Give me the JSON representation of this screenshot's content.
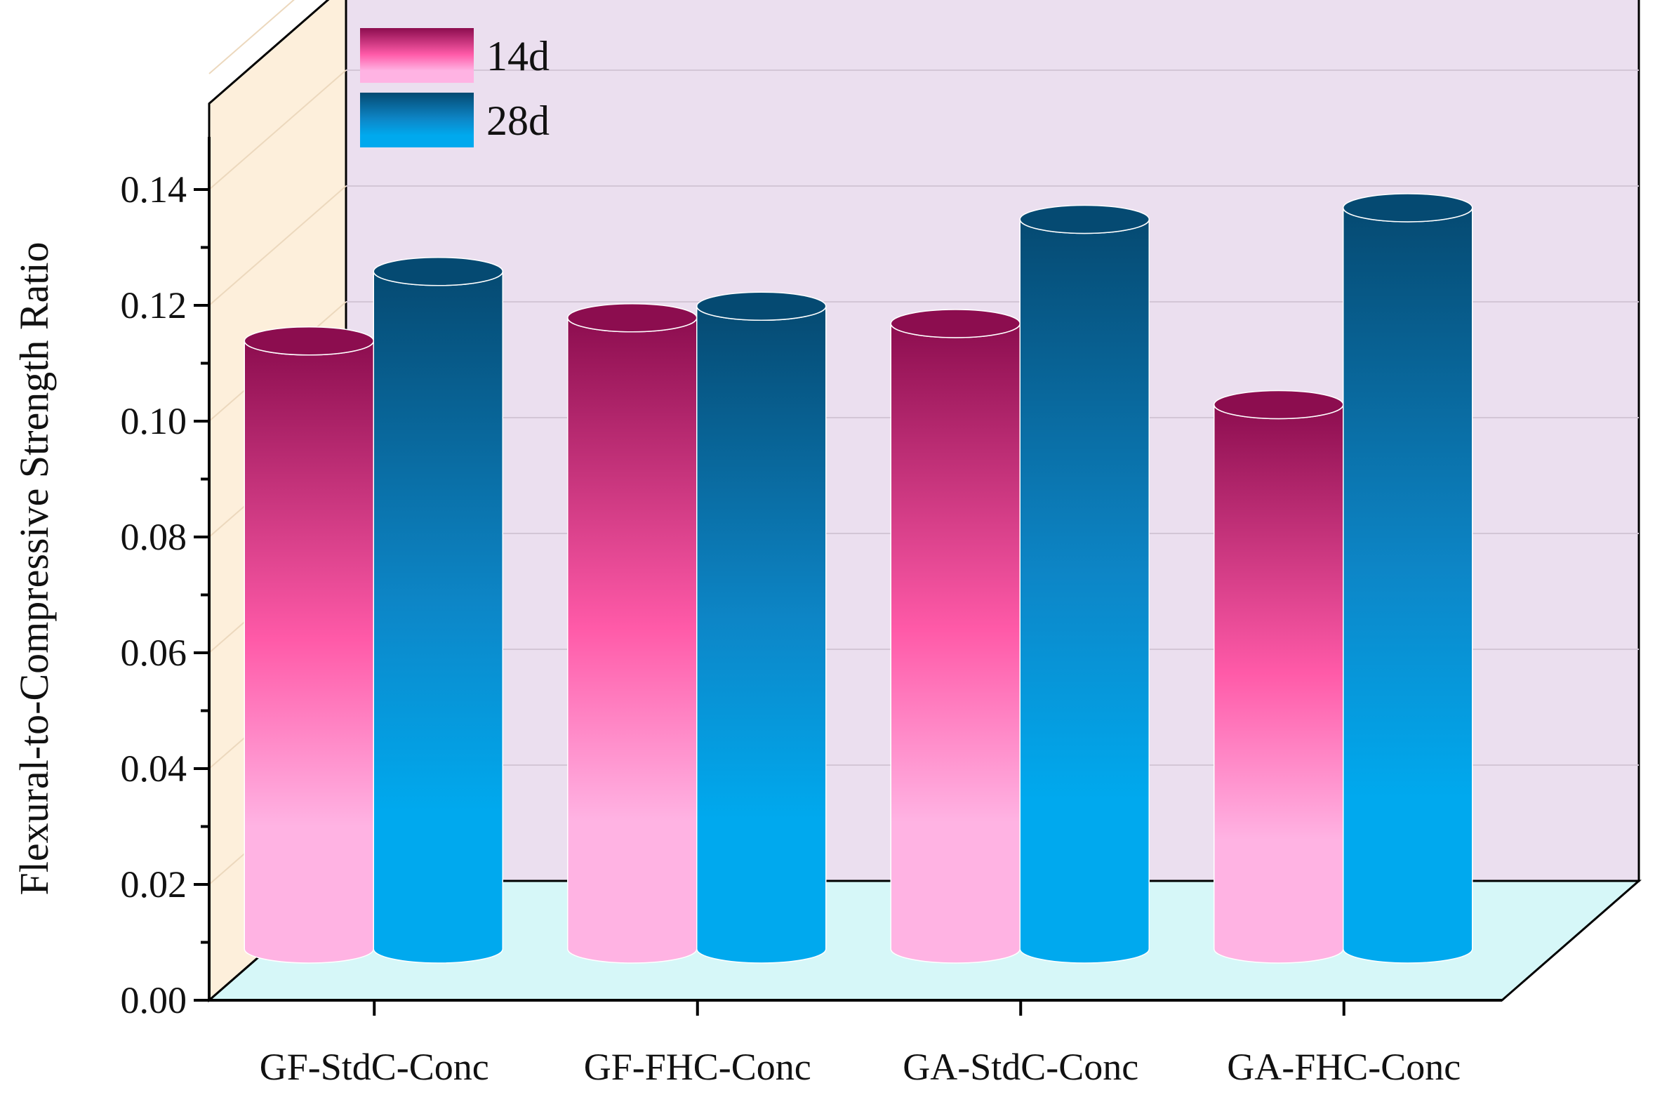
{
  "chart_data": {
    "type": "bar",
    "style": "3d-cylinder",
    "title": "",
    "xlabel": "",
    "ylabel": "Flexural-to-Compressive Strength Ratio",
    "ylim": [
      0,
      0.15
    ],
    "yticks": [
      "0.00",
      "0.02",
      "0.04",
      "0.06",
      "0.08",
      "0.10",
      "0.12",
      "0.14"
    ],
    "categories": [
      "GF-StdC-Conc",
      "GF-FHC-Conc",
      "GA-StdC-Conc",
      "GA-FHC-Conc"
    ],
    "series": [
      {
        "name": "14d",
        "values": [
          0.105,
          0.109,
          0.108,
          0.094
        ],
        "color_light": "#ffb3e3",
        "color_mid": "#ff5aa8",
        "color_dark": "#8c0d4f"
      },
      {
        "name": "28d",
        "values": [
          0.117,
          0.111,
          0.126,
          0.128
        ],
        "color_light": "#00a9ee",
        "color_mid": "#0d86c7",
        "color_dark": "#054a72"
      }
    ],
    "grid": true,
    "legend_position": "top-left",
    "colors": {
      "back_wall": "#ebdfef",
      "side_wall": "#fdefdb",
      "floor": "#d6f7f8"
    }
  }
}
